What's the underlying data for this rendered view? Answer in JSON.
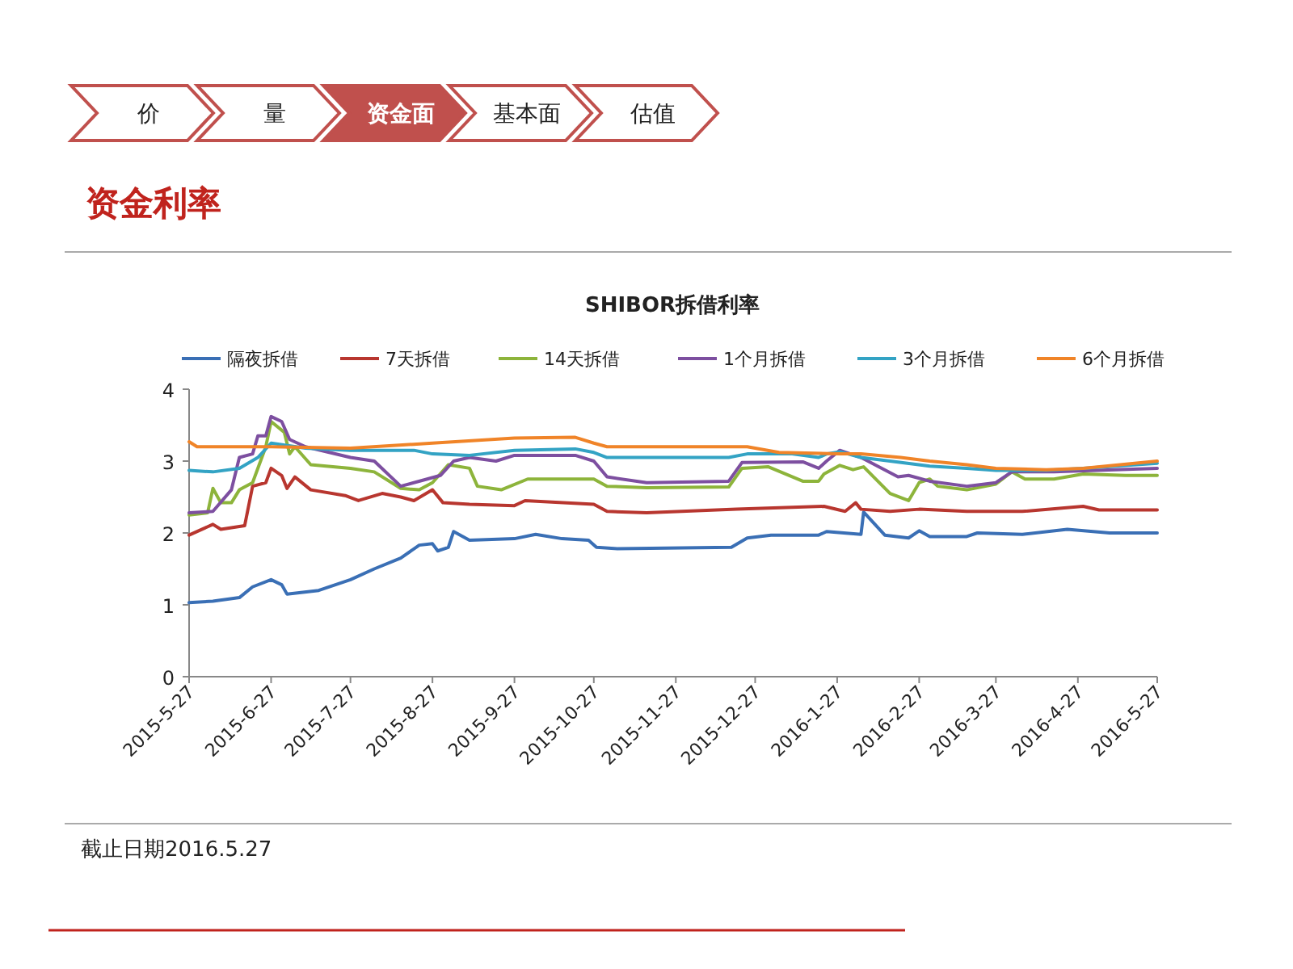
{
  "chart_data": {
    "type": "line",
    "title": "SHIBOR拆借利率",
    "annotations": [
      "价",
      "量",
      "资金面",
      "基本面",
      "估值",
      "资金利率",
      "截止日期2016.5.27"
    ],
    "xlim": [
      "2015-05-27",
      "2016-05-27"
    ],
    "xticks": [
      {
        "value": "2015-05-27",
        "label": "2015-5-27"
      },
      {
        "value": "2015-06-27",
        "label": "2015-6-27"
      },
      {
        "value": "2015-07-27",
        "label": "2015-7-27"
      },
      {
        "value": "2015-08-27",
        "label": "2015-8-27"
      },
      {
        "value": "2015-09-27",
        "label": "2015-9-27"
      },
      {
        "value": "2015-10-27",
        "label": "2015-10-27"
      },
      {
        "value": "2015-11-27",
        "label": "2015-11-27"
      },
      {
        "value": "2015-12-27",
        "label": "2015-12-27"
      },
      {
        "value": "2016-01-27",
        "label": "2016-1-27"
      },
      {
        "value": "2016-02-27",
        "label": "2016-2-27"
      },
      {
        "value": "2016-03-27",
        "label": "2016-3-27"
      },
      {
        "value": "2016-04-27",
        "label": "2016-4-27"
      },
      {
        "value": "2016-05-27",
        "label": "2016-5-27"
      }
    ],
    "ylim": [
      0,
      4
    ],
    "yticks": [
      0,
      1,
      2,
      3,
      4
    ],
    "legend": "top",
    "series": [
      {
        "name": "隔夜拆借",
        "color": "#3a6fb5",
        "x": [
          "2015-05-27",
          "2015-06-05",
          "2015-06-15",
          "2015-06-20",
          "2015-06-27",
          "2015-07-01",
          "2015-07-03",
          "2015-07-15",
          "2015-07-27",
          "2015-08-05",
          "2015-08-15",
          "2015-08-22",
          "2015-08-27",
          "2015-08-29",
          "2015-09-02",
          "2015-09-04",
          "2015-09-10",
          "2015-09-27",
          "2015-10-05",
          "2015-10-15",
          "2015-10-25",
          "2015-10-28",
          "2015-11-05",
          "2015-12-18",
          "2015-12-24",
          "2016-01-02",
          "2016-01-20",
          "2016-01-23",
          "2016-02-05",
          "2016-02-06",
          "2016-02-14",
          "2016-02-23",
          "2016-02-27",
          "2016-03-02",
          "2016-03-16",
          "2016-03-20",
          "2016-04-06",
          "2016-04-23",
          "2016-05-09",
          "2016-05-27"
        ],
        "values": [
          1.03,
          1.05,
          1.1,
          1.25,
          1.35,
          1.28,
          1.15,
          1.2,
          1.35,
          1.5,
          1.65,
          1.83,
          1.85,
          1.75,
          1.8,
          2.02,
          1.9,
          1.92,
          1.98,
          1.92,
          1.9,
          1.8,
          1.78,
          1.8,
          1.93,
          1.97,
          1.97,
          2.02,
          1.98,
          2.29,
          1.97,
          1.93,
          2.03,
          1.95,
          1.95,
          2.0,
          1.98,
          2.05,
          2.0,
          2.0
        ]
      },
      {
        "name": "7天拆借",
        "color": "#b8362f",
        "x": [
          "2015-05-27",
          "2015-06-05",
          "2015-06-08",
          "2015-06-17",
          "2015-06-20",
          "2015-06-25",
          "2015-06-27",
          "2015-07-01",
          "2015-07-03",
          "2015-07-06",
          "2015-07-12",
          "2015-07-25",
          "2015-07-30",
          "2015-08-08",
          "2015-08-15",
          "2015-08-20",
          "2015-08-27",
          "2015-08-31",
          "2015-09-10",
          "2015-09-27",
          "2015-10-01",
          "2015-10-27",
          "2015-11-01",
          "2015-11-16",
          "2015-12-20",
          "2016-01-22",
          "2016-01-30",
          "2016-02-03",
          "2016-02-05",
          "2016-02-16",
          "2016-02-27",
          "2016-03-16",
          "2016-04-06",
          "2016-04-29",
          "2016-05-05",
          "2016-05-27"
        ],
        "values": [
          1.97,
          2.12,
          2.05,
          2.1,
          2.65,
          2.7,
          2.9,
          2.8,
          2.62,
          2.78,
          2.6,
          2.52,
          2.45,
          2.55,
          2.5,
          2.45,
          2.6,
          2.42,
          2.4,
          2.38,
          2.45,
          2.4,
          2.3,
          2.28,
          2.33,
          2.37,
          2.3,
          2.42,
          2.33,
          2.3,
          2.33,
          2.3,
          2.3,
          2.37,
          2.32,
          2.32
        ]
      },
      {
        "name": "14天拆借",
        "color": "#8db43b",
        "x": [
          "2015-05-27",
          "2015-06-03",
          "2015-06-05",
          "2015-06-08",
          "2015-06-12",
          "2015-06-15",
          "2015-06-20",
          "2015-06-25",
          "2015-06-27",
          "2015-07-02",
          "2015-07-04",
          "2015-07-06",
          "2015-07-12",
          "2015-07-27",
          "2015-08-05",
          "2015-08-15",
          "2015-08-22",
          "2015-08-27",
          "2015-09-02",
          "2015-09-10",
          "2015-09-13",
          "2015-09-22",
          "2015-10-02",
          "2015-10-27",
          "2015-11-01",
          "2015-11-16",
          "2015-12-17",
          "2015-12-22",
          "2016-01-01",
          "2016-01-14",
          "2016-01-20",
          "2016-01-22",
          "2016-01-28",
          "2016-02-02",
          "2016-02-06",
          "2016-02-16",
          "2016-02-23",
          "2016-02-27",
          "2016-03-02",
          "2016-03-05",
          "2016-03-16",
          "2016-03-27",
          "2016-04-02",
          "2016-04-07",
          "2016-04-18",
          "2016-04-29",
          "2016-05-15",
          "2016-05-27"
        ],
        "values": [
          2.25,
          2.28,
          2.62,
          2.42,
          2.42,
          2.6,
          2.7,
          3.2,
          3.55,
          3.4,
          3.1,
          3.2,
          2.95,
          2.9,
          2.85,
          2.62,
          2.6,
          2.7,
          2.95,
          2.9,
          2.65,
          2.6,
          2.75,
          2.75,
          2.65,
          2.63,
          2.64,
          2.9,
          2.92,
          2.72,
          2.72,
          2.82,
          2.94,
          2.88,
          2.92,
          2.55,
          2.45,
          2.7,
          2.75,
          2.65,
          2.6,
          2.68,
          2.85,
          2.75,
          2.75,
          2.82,
          2.8,
          2.8
        ]
      },
      {
        "name": "1个月拆借",
        "color": "#7d4fa0",
        "x": [
          "2015-05-27",
          "2015-06-05",
          "2015-06-12",
          "2015-06-15",
          "2015-06-20",
          "2015-06-22",
          "2015-06-25",
          "2015-06-27",
          "2015-07-01",
          "2015-07-04",
          "2015-07-10",
          "2015-07-27",
          "2015-08-05",
          "2015-08-15",
          "2015-08-25",
          "2015-08-30",
          "2015-09-04",
          "2015-09-10",
          "2015-09-20",
          "2015-09-27",
          "2015-10-20",
          "2015-10-27",
          "2015-11-01",
          "2015-11-16",
          "2015-12-17",
          "2015-12-22",
          "2016-01-14",
          "2016-01-20",
          "2016-01-23",
          "2016-01-28",
          "2016-02-05",
          "2016-02-19",
          "2016-02-23",
          "2016-03-02",
          "2016-03-16",
          "2016-03-27",
          "2016-04-02",
          "2016-04-18",
          "2016-05-27"
        ],
        "values": [
          2.28,
          2.3,
          2.6,
          3.05,
          3.1,
          3.35,
          3.35,
          3.62,
          3.55,
          3.3,
          3.2,
          3.05,
          3.0,
          2.65,
          2.75,
          2.8,
          3.0,
          3.05,
          3.0,
          3.08,
          3.08,
          3.0,
          2.78,
          2.7,
          2.72,
          2.98,
          2.99,
          2.9,
          3.0,
          3.15,
          3.05,
          2.78,
          2.8,
          2.72,
          2.65,
          2.7,
          2.85,
          2.85,
          2.9
        ]
      },
      {
        "name": "3个月拆借",
        "color": "#33a3c4",
        "x": [
          "2015-05-27",
          "2015-06-05",
          "2015-06-15",
          "2015-06-22",
          "2015-06-27",
          "2015-07-10",
          "2015-07-27",
          "2015-08-20",
          "2015-08-27",
          "2015-09-10",
          "2015-09-27",
          "2015-10-20",
          "2015-10-27",
          "2015-11-01",
          "2015-11-16",
          "2015-12-17",
          "2015-12-24",
          "2016-01-10",
          "2016-01-20",
          "2016-01-23",
          "2016-01-28",
          "2016-02-05",
          "2016-02-16",
          "2016-03-02",
          "2016-03-16",
          "2016-03-27",
          "2016-04-15",
          "2016-04-29",
          "2016-05-27"
        ],
        "values": [
          2.87,
          2.85,
          2.9,
          3.05,
          3.25,
          3.18,
          3.15,
          3.15,
          3.1,
          3.08,
          3.15,
          3.17,
          3.12,
          3.05,
          3.05,
          3.05,
          3.1,
          3.1,
          3.05,
          3.1,
          3.13,
          3.05,
          3.0,
          2.93,
          2.9,
          2.87,
          2.87,
          2.9,
          2.97
        ]
      },
      {
        "name": "6个月拆借",
        "color": "#f08428",
        "x": [
          "2015-05-27",
          "2015-05-30",
          "2015-06-27",
          "2015-07-27",
          "2015-08-27",
          "2015-09-27",
          "2015-10-20",
          "2015-10-27",
          "2015-11-01",
          "2015-11-16",
          "2015-12-24",
          "2016-01-05",
          "2016-01-28",
          "2016-02-05",
          "2016-02-20",
          "2016-03-02",
          "2016-03-16",
          "2016-03-27",
          "2016-04-15",
          "2016-04-29",
          "2016-05-27"
        ],
        "values": [
          3.27,
          3.2,
          3.2,
          3.18,
          3.25,
          3.32,
          3.33,
          3.25,
          3.2,
          3.2,
          3.2,
          3.12,
          3.1,
          3.1,
          3.05,
          3.0,
          2.95,
          2.9,
          2.88,
          2.9,
          3.0
        ]
      }
    ]
  }
}
